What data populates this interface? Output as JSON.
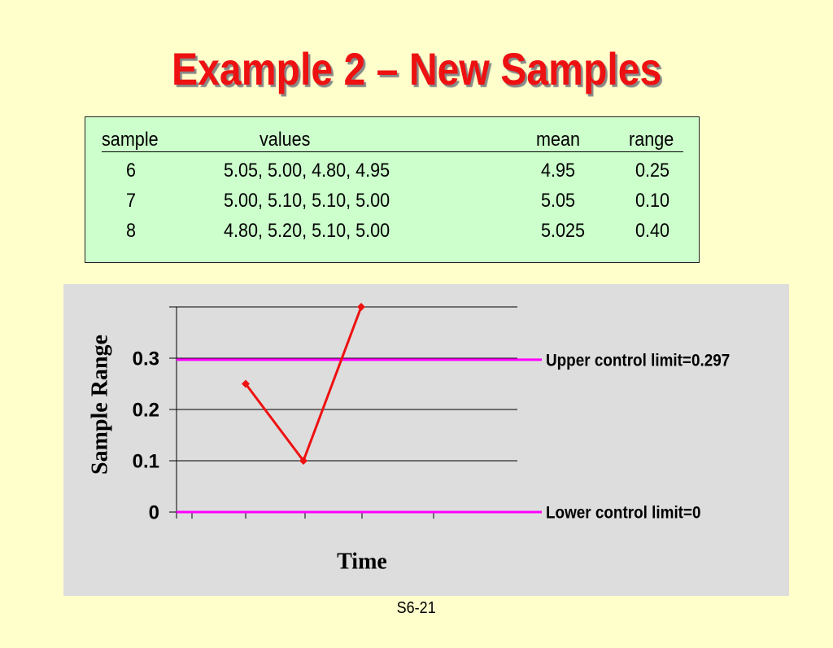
{
  "title": "Example 2 – New Samples",
  "table": {
    "header": [
      "sample",
      "values",
      "mean",
      "range"
    ],
    "rows": [
      [
        "6",
        "5.05, 5.00, 4.80, 4.95",
        "4.95",
        "0.25"
      ],
      [
        "7",
        "5.00, 5.10, 5.10, 5.00",
        "5.05",
        "0.10"
      ],
      [
        "8",
        "4.80, 5.20, 5.10, 5.00",
        "5.025",
        "0.40"
      ]
    ]
  },
  "chart_data": {
    "type": "line",
    "y_label": "Sample Range",
    "x_label": "Time",
    "categories": [
      null,
      null,
      null
    ],
    "values": [
      0.25,
      0.1,
      0.4
    ],
    "color": "#ee1111",
    "ylim": [
      0,
      0.4
    ],
    "yticks": [
      0,
      0.1,
      0.2,
      0.3
    ],
    "grid": true,
    "control_limits": [
      {
        "label": "Upper control limit=0.297",
        "value": 0.297,
        "color": "#ff00ff"
      },
      {
        "label": "Lower control limit=0",
        "value": 0,
        "color": "#ff00ff"
      }
    ]
  },
  "footer": "S6-21"
}
